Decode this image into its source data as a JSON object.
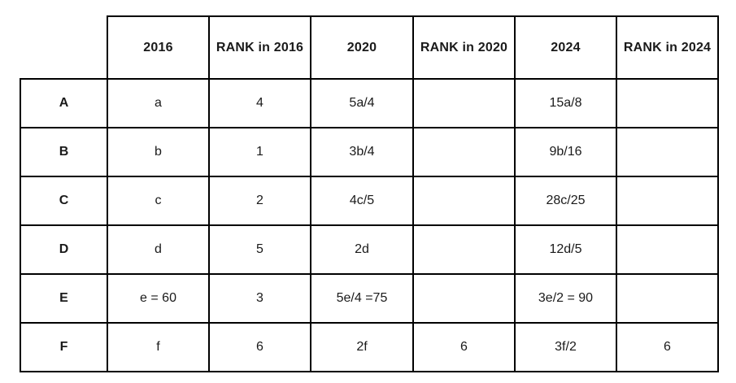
{
  "table": {
    "columns": [
      "",
      "2016",
      "RANK in 2016",
      "2020",
      "RANK in 2020",
      "2024",
      "RANK in 2024"
    ],
    "rows": [
      {
        "label": "A",
        "cells": [
          "a",
          "4",
          "5a/4",
          "",
          "15a/8",
          ""
        ]
      },
      {
        "label": "B",
        "cells": [
          "b",
          "1",
          "3b/4",
          "",
          "9b/16",
          ""
        ]
      },
      {
        "label": "C",
        "cells": [
          "c",
          "2",
          "4c/5",
          "",
          "28c/25",
          ""
        ]
      },
      {
        "label": "D",
        "cells": [
          "d",
          "5",
          "2d",
          "",
          "12d/5",
          ""
        ]
      },
      {
        "label": "E",
        "cells": [
          "e = 60",
          "3",
          "5e/4 =75",
          "",
          "3e/2 = 90",
          ""
        ]
      },
      {
        "label": "F",
        "cells": [
          "f",
          "6",
          "2f",
          "6",
          "3f/2",
          "6"
        ]
      }
    ],
    "colors": {
      "text": "#1a1a1a",
      "border": "#000000",
      "background": "#ffffff"
    }
  }
}
